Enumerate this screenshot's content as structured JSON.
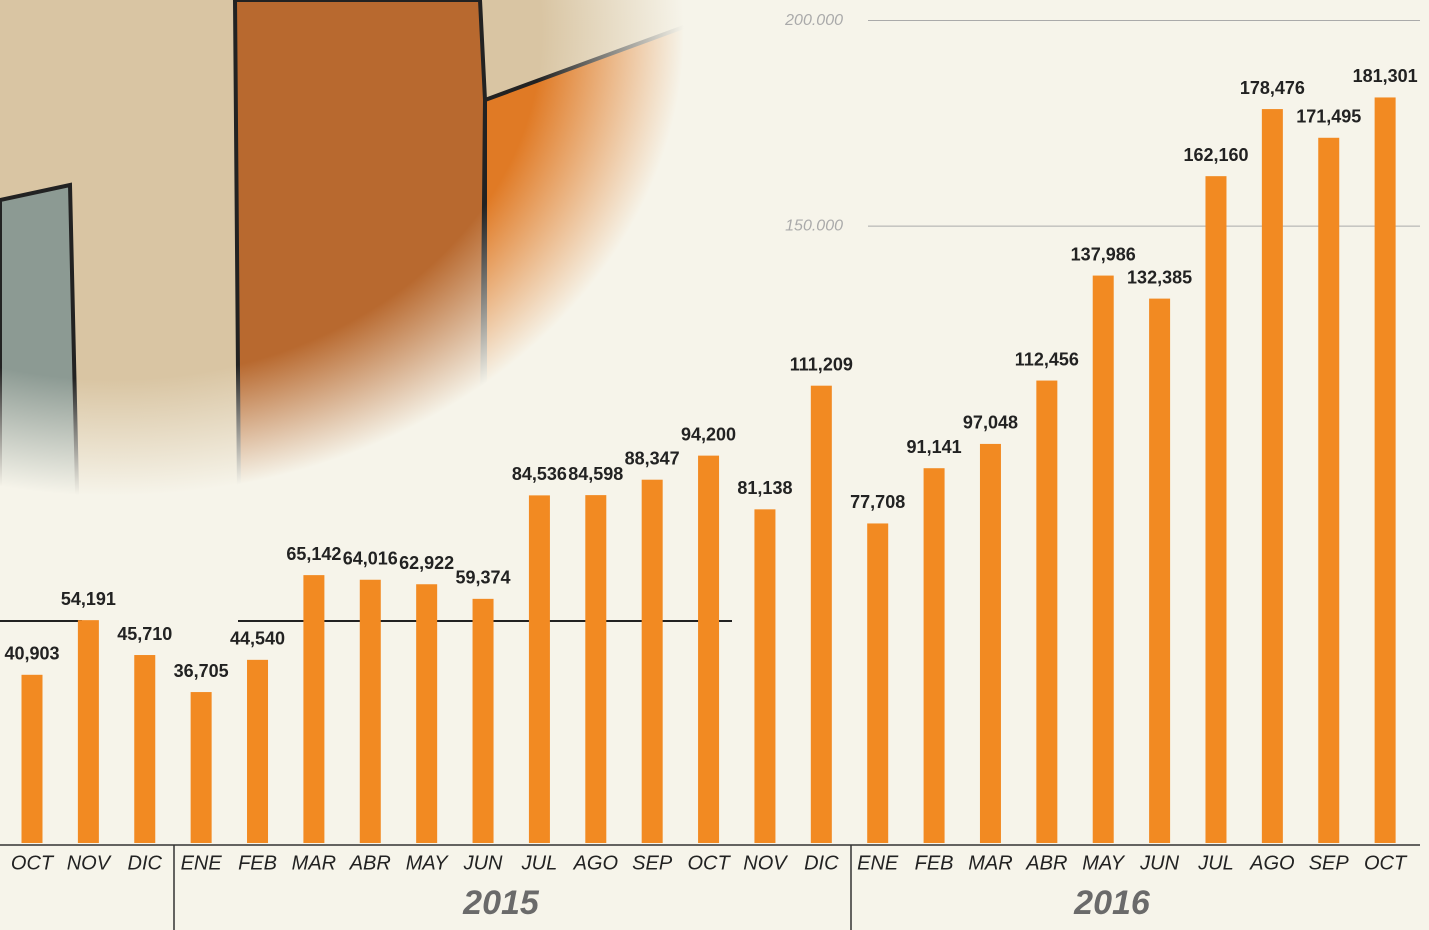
{
  "chart_data": {
    "type": "bar",
    "categories": [
      "OCT",
      "NOV",
      "DIC",
      "ENE",
      "FEB",
      "MAR",
      "ABR",
      "MAY",
      "JUN",
      "JUL",
      "AGO",
      "SEP",
      "OCT",
      "NOV",
      "DIC",
      "ENE",
      "FEB",
      "MAR",
      "ABR",
      "MAY",
      "JUN",
      "JUL",
      "AGO",
      "SEP",
      "OCT"
    ],
    "values": [
      40903,
      54191,
      45710,
      36705,
      44540,
      65142,
      64016,
      62922,
      59374,
      84536,
      84598,
      88347,
      94200,
      81138,
      111209,
      77708,
      91141,
      97048,
      112456,
      137986,
      132385,
      162160,
      178476,
      171495,
      181301
    ],
    "value_labels": [
      "40,903",
      "54,191",
      "45,710",
      "36,705",
      "44,540",
      "65,142",
      "64,016",
      "62,922",
      "59,374",
      "84,536",
      "84,598",
      "88,347",
      "94,200",
      "81,138",
      "111,209",
      "77,708",
      "91,141",
      "97,048",
      "112,456",
      "137,986",
      "132,385",
      "162,160",
      "178,476",
      "171,495",
      "181,301"
    ],
    "year_labels": [
      "2015",
      "2016"
    ],
    "color": "#f28a22",
    "ylim": [
      0,
      205000
    ],
    "yticks": [
      {
        "value": 150000,
        "label": "150.000"
      },
      {
        "value": 200000,
        "label": "200.000"
      }
    ],
    "grid": true
  }
}
